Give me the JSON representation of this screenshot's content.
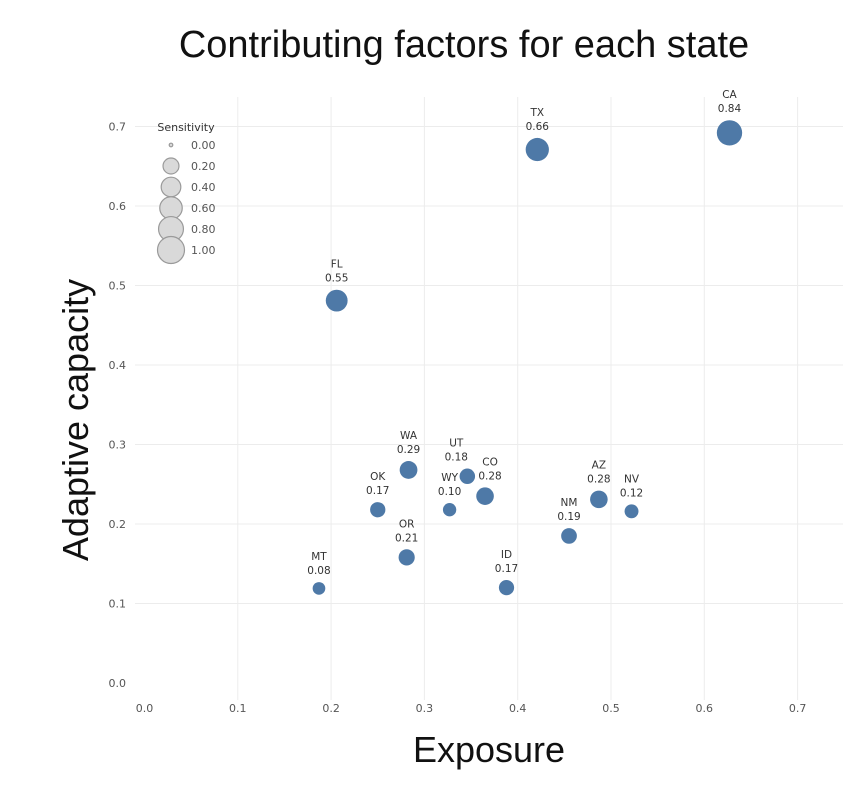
{
  "chart_data": {
    "type": "scatter",
    "title": "Contributing factors for each state",
    "xlabel": "Exposure",
    "ylabel": "Adaptive capacity",
    "xlim": [
      0.0,
      0.75
    ],
    "ylim": [
      0.0,
      0.75
    ],
    "x_ticks": [
      "0.0",
      "0.1",
      "0.2",
      "0.3",
      "0.4",
      "0.5",
      "0.6",
      "0.7"
    ],
    "y_ticks": [
      "0.0",
      "0.1",
      "0.2",
      "0.3",
      "0.4",
      "0.5",
      "0.6",
      "0.7"
    ],
    "grid": true,
    "size_legend": {
      "title": "Sensitivity",
      "placement": "top-left",
      "entries": [
        "0.00",
        "0.20",
        "0.40",
        "0.60",
        "0.80",
        "1.00"
      ]
    },
    "marker_color": "#4e79a7",
    "legend_marker_color": "#d9d9d9",
    "points": [
      {
        "state": "CA",
        "sensitivity": "0.84",
        "x": 0.627,
        "y": 0.692
      },
      {
        "state": "TX",
        "sensitivity": "0.66",
        "x": 0.421,
        "y": 0.671
      },
      {
        "state": "FL",
        "sensitivity": "0.55",
        "x": 0.206,
        "y": 0.481
      },
      {
        "state": "WA",
        "sensitivity": "0.29",
        "x": 0.283,
        "y": 0.268
      },
      {
        "state": "UT",
        "sensitivity": "0.18",
        "x": 0.346,
        "y": 0.26
      },
      {
        "state": "CO",
        "sensitivity": "0.28",
        "x": 0.365,
        "y": 0.235
      },
      {
        "state": "AZ",
        "sensitivity": "0.28",
        "x": 0.487,
        "y": 0.231
      },
      {
        "state": "OK",
        "sensitivity": "0.17",
        "x": 0.25,
        "y": 0.218
      },
      {
        "state": "WY",
        "sensitivity": "0.10",
        "x": 0.327,
        "y": 0.218
      },
      {
        "state": "NV",
        "sensitivity": "0.12",
        "x": 0.522,
        "y": 0.216
      },
      {
        "state": "NM",
        "sensitivity": "0.19",
        "x": 0.455,
        "y": 0.185
      },
      {
        "state": "OR",
        "sensitivity": "0.21",
        "x": 0.281,
        "y": 0.158
      },
      {
        "state": "ID",
        "sensitivity": "0.17",
        "x": 0.388,
        "y": 0.12
      },
      {
        "state": "MT",
        "sensitivity": "0.08",
        "x": 0.187,
        "y": 0.119
      }
    ]
  }
}
